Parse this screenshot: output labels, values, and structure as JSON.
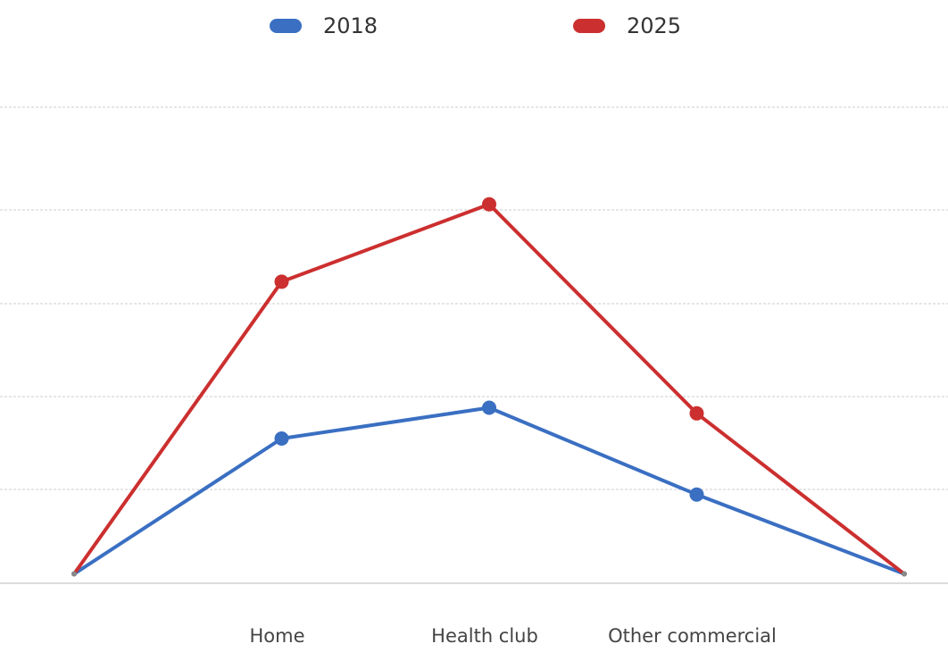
{
  "chart_data": {
    "type": "line",
    "categories": [
      "",
      "Home",
      "Health club",
      "Other commercial",
      ""
    ],
    "series": [
      {
        "name": "2018",
        "color": "#3a6fc2",
        "values": [
          0,
          14.5,
          17.8,
          8.5,
          0
        ]
      },
      {
        "name": "2025",
        "color": "#cc2f2f",
        "values": [
          0,
          31.3,
          39.6,
          17.2,
          0
        ]
      }
    ],
    "xlabel": "",
    "ylabel": "",
    "ylim": [
      -1,
      50
    ],
    "grid": true,
    "legend": "top-center"
  }
}
